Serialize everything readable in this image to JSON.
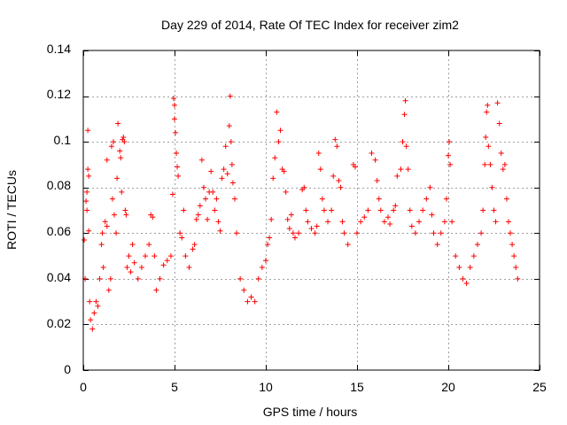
{
  "chart_data": {
    "type": "scatter",
    "title": "Day 229 of 2014, Rate Of TEC Index for receiver zim2",
    "xlabel": "GPS time / hours",
    "ylabel": "ROTI / TECUs",
    "xlim": [
      0,
      25
    ],
    "ylim": [
      0,
      0.14
    ],
    "x_ticks": [
      0,
      5,
      10,
      15,
      20,
      25
    ],
    "y_ticks": [
      0,
      0.02,
      0.04,
      0.06,
      0.08,
      0.1,
      0.12,
      0.14
    ],
    "x_tick_labels": [
      "0",
      "5",
      "10",
      "15",
      "20",
      "25"
    ],
    "y_tick_labels": [
      "0",
      "0.02",
      "0.04",
      "0.06",
      "0.08",
      "0.1",
      "0.12",
      "0.14"
    ],
    "grid": true,
    "marker": "+",
    "color": "#ff0000",
    "series": [
      {
        "name": "ROTI",
        "points": [
          [
            0.05,
            0.057
          ],
          [
            0.1,
            0.04
          ],
          [
            0.15,
            0.074
          ],
          [
            0.2,
            0.078
          ],
          [
            0.2,
            0.07
          ],
          [
            0.25,
            0.105
          ],
          [
            0.25,
            0.088
          ],
          [
            0.3,
            0.085
          ],
          [
            0.3,
            0.061
          ],
          [
            0.35,
            0.03
          ],
          [
            0.4,
            0.022
          ],
          [
            0.5,
            0.018
          ],
          [
            0.6,
            0.025
          ],
          [
            0.7,
            0.03
          ],
          [
            0.8,
            0.028
          ],
          [
            0.9,
            0.04
          ],
          [
            1.0,
            0.055
          ],
          [
            1.05,
            0.06
          ],
          [
            1.1,
            0.045
          ],
          [
            1.2,
            0.065
          ],
          [
            1.3,
            0.063
          ],
          [
            1.3,
            0.092
          ],
          [
            1.4,
            0.035
          ],
          [
            1.5,
            0.04
          ],
          [
            1.55,
            0.098
          ],
          [
            1.6,
            0.075
          ],
          [
            1.65,
            0.1
          ],
          [
            1.7,
            0.068
          ],
          [
            1.8,
            0.06
          ],
          [
            1.85,
            0.084
          ],
          [
            1.9,
            0.108
          ],
          [
            2.0,
            0.096
          ],
          [
            2.05,
            0.093
          ],
          [
            2.1,
            0.078
          ],
          [
            2.15,
            0.101
          ],
          [
            2.2,
            0.102
          ],
          [
            2.25,
            0.1
          ],
          [
            2.3,
            0.07
          ],
          [
            2.35,
            0.068
          ],
          [
            2.4,
            0.045
          ],
          [
            2.5,
            0.05
          ],
          [
            2.6,
            0.043
          ],
          [
            2.7,
            0.055
          ],
          [
            2.8,
            0.047
          ],
          [
            3.0,
            0.04
          ],
          [
            3.2,
            0.045
          ],
          [
            3.4,
            0.05
          ],
          [
            3.6,
            0.055
          ],
          [
            3.7,
            0.068
          ],
          [
            3.8,
            0.067
          ],
          [
            3.9,
            0.05
          ],
          [
            4.0,
            0.035
          ],
          [
            4.2,
            0.04
          ],
          [
            4.4,
            0.046
          ],
          [
            4.6,
            0.048
          ],
          [
            4.8,
            0.05
          ],
          [
            4.9,
            0.077
          ],
          [
            4.95,
            0.119
          ],
          [
            5.0,
            0.116
          ],
          [
            5.0,
            0.11
          ],
          [
            5.05,
            0.104
          ],
          [
            5.1,
            0.095
          ],
          [
            5.15,
            0.089
          ],
          [
            5.2,
            0.085
          ],
          [
            5.3,
            0.06
          ],
          [
            5.4,
            0.058
          ],
          [
            5.5,
            0.07
          ],
          [
            5.6,
            0.05
          ],
          [
            5.8,
            0.045
          ],
          [
            6.0,
            0.053
          ],
          [
            6.1,
            0.055
          ],
          [
            6.2,
            0.066
          ],
          [
            6.3,
            0.068
          ],
          [
            6.4,
            0.072
          ],
          [
            6.5,
            0.092
          ],
          [
            6.6,
            0.08
          ],
          [
            6.7,
            0.075
          ],
          [
            6.8,
            0.066
          ],
          [
            6.9,
            0.078
          ],
          [
            7.0,
            0.087
          ],
          [
            7.1,
            0.078
          ],
          [
            7.2,
            0.07
          ],
          [
            7.3,
            0.075
          ],
          [
            7.4,
            0.065
          ],
          [
            7.5,
            0.061
          ],
          [
            7.6,
            0.084
          ],
          [
            7.7,
            0.088
          ],
          [
            7.8,
            0.098
          ],
          [
            7.9,
            0.086
          ],
          [
            8.0,
            0.107
          ],
          [
            8.05,
            0.12
          ],
          [
            8.1,
            0.1
          ],
          [
            8.15,
            0.09
          ],
          [
            8.2,
            0.082
          ],
          [
            8.3,
            0.075
          ],
          [
            8.4,
            0.06
          ],
          [
            8.6,
            0.04
          ],
          [
            8.8,
            0.035
          ],
          [
            9.0,
            0.03
          ],
          [
            9.2,
            0.032
          ],
          [
            9.4,
            0.03
          ],
          [
            9.6,
            0.04
          ],
          [
            9.8,
            0.045
          ],
          [
            10.0,
            0.048
          ],
          [
            10.1,
            0.055
          ],
          [
            10.2,
            0.058
          ],
          [
            10.3,
            0.066
          ],
          [
            10.4,
            0.084
          ],
          [
            10.5,
            0.093
          ],
          [
            10.6,
            0.113
          ],
          [
            10.7,
            0.1
          ],
          [
            10.8,
            0.105
          ],
          [
            10.9,
            0.088
          ],
          [
            11.0,
            0.087
          ],
          [
            11.1,
            0.078
          ],
          [
            11.2,
            0.066
          ],
          [
            11.3,
            0.062
          ],
          [
            11.4,
            0.068
          ],
          [
            11.5,
            0.06
          ],
          [
            11.6,
            0.058
          ],
          [
            11.8,
            0.06
          ],
          [
            12.0,
            0.079
          ],
          [
            12.1,
            0.08
          ],
          [
            12.2,
            0.07
          ],
          [
            12.3,
            0.065
          ],
          [
            12.5,
            0.062
          ],
          [
            12.7,
            0.06
          ],
          [
            12.8,
            0.063
          ],
          [
            12.9,
            0.095
          ],
          [
            13.0,
            0.088
          ],
          [
            13.1,
            0.075
          ],
          [
            13.2,
            0.07
          ],
          [
            13.4,
            0.065
          ],
          [
            13.6,
            0.07
          ],
          [
            13.7,
            0.085
          ],
          [
            13.8,
            0.101
          ],
          [
            13.9,
            0.098
          ],
          [
            14.0,
            0.083
          ],
          [
            14.1,
            0.08
          ],
          [
            14.2,
            0.065
          ],
          [
            14.3,
            0.06
          ],
          [
            14.5,
            0.055
          ],
          [
            14.8,
            0.09
          ],
          [
            14.9,
            0.089
          ],
          [
            15.0,
            0.06
          ],
          [
            15.2,
            0.065
          ],
          [
            15.4,
            0.067
          ],
          [
            15.6,
            0.07
          ],
          [
            15.8,
            0.095
          ],
          [
            16.0,
            0.092
          ],
          [
            16.1,
            0.083
          ],
          [
            16.2,
            0.075
          ],
          [
            16.3,
            0.07
          ],
          [
            16.5,
            0.065
          ],
          [
            16.7,
            0.067
          ],
          [
            16.8,
            0.064
          ],
          [
            17.0,
            0.07
          ],
          [
            17.1,
            0.072
          ],
          [
            17.2,
            0.085
          ],
          [
            17.4,
            0.088
          ],
          [
            17.5,
            0.1
          ],
          [
            17.6,
            0.112
          ],
          [
            17.65,
            0.118
          ],
          [
            17.7,
            0.098
          ],
          [
            17.8,
            0.088
          ],
          [
            17.9,
            0.07
          ],
          [
            18.0,
            0.063
          ],
          [
            18.2,
            0.06
          ],
          [
            18.4,
            0.065
          ],
          [
            18.6,
            0.07
          ],
          [
            18.8,
            0.075
          ],
          [
            19.0,
            0.08
          ],
          [
            19.1,
            0.068
          ],
          [
            19.2,
            0.06
          ],
          [
            19.4,
            0.055
          ],
          [
            19.6,
            0.06
          ],
          [
            19.8,
            0.065
          ],
          [
            19.9,
            0.075
          ],
          [
            20.0,
            0.094
          ],
          [
            20.05,
            0.1
          ],
          [
            20.1,
            0.09
          ],
          [
            20.2,
            0.065
          ],
          [
            20.4,
            0.05
          ],
          [
            20.6,
            0.045
          ],
          [
            20.8,
            0.04
          ],
          [
            21.0,
            0.038
          ],
          [
            21.2,
            0.045
          ],
          [
            21.4,
            0.05
          ],
          [
            21.6,
            0.055
          ],
          [
            21.8,
            0.06
          ],
          [
            21.9,
            0.07
          ],
          [
            22.0,
            0.09
          ],
          [
            22.05,
            0.102
          ],
          [
            22.1,
            0.113
          ],
          [
            22.15,
            0.116
          ],
          [
            22.2,
            0.098
          ],
          [
            22.3,
            0.09
          ],
          [
            22.4,
            0.08
          ],
          [
            22.5,
            0.07
          ],
          [
            22.6,
            0.065
          ],
          [
            22.7,
            0.117
          ],
          [
            22.8,
            0.108
          ],
          [
            22.9,
            0.095
          ],
          [
            23.0,
            0.088
          ],
          [
            23.1,
            0.09
          ],
          [
            23.2,
            0.075
          ],
          [
            23.3,
            0.065
          ],
          [
            23.4,
            0.06
          ],
          [
            23.5,
            0.055
          ],
          [
            23.6,
            0.05
          ],
          [
            23.7,
            0.045
          ],
          [
            23.8,
            0.04
          ]
        ]
      }
    ]
  }
}
